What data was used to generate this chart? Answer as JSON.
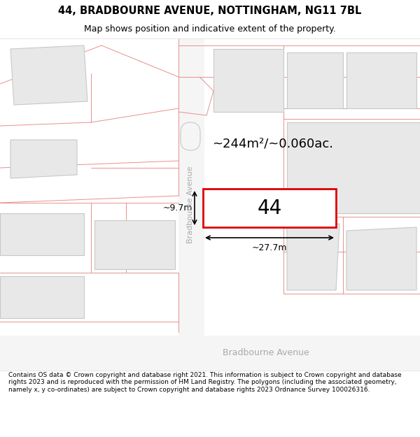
{
  "title": "44, BRADBOURNE AVENUE, NOTTINGHAM, NG11 7BL",
  "subtitle": "Map shows position and indicative extent of the property.",
  "footer": "Contains OS data © Crown copyright and database right 2021. This information is subject to Crown copyright and database rights 2023 and is reproduced with the permission of HM Land Registry. The polygons (including the associated geometry, namely x, y co-ordinates) are subject to Crown copyright and database rights 2023 Ordnance Survey 100026316.",
  "area_label": "~244m²/~0.060ac.",
  "width_label": "~27.7m",
  "height_label": "~9.7m",
  "number_label": "44",
  "road_label_v": "Bradbourne Avenue",
  "road_label_h": "Bradbourne Avenue",
  "bg_color": "#ffffff",
  "map_bg": "#ffffff",
  "bldg_fill": "#e8e8e8",
  "bldg_edge": "#c8c8c8",
  "red_prop": "#dd0000",
  "bound_color": "#e89090",
  "road_fill": "#f5f5f5",
  "road_label_color": "#aaaaaa",
  "title_fontsize": 10.5,
  "subtitle_fontsize": 9.0,
  "footer_fontsize": 6.5,
  "number_fontsize": 20,
  "area_fontsize": 13,
  "dim_fontsize": 9
}
